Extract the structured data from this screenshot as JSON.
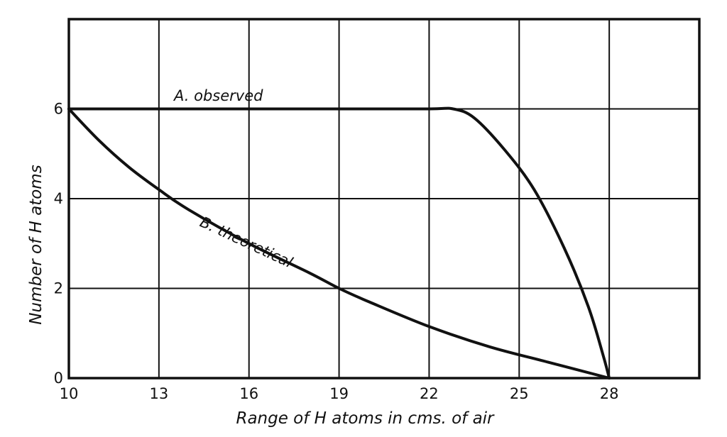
{
  "chart_data": {
    "type": "line",
    "xlabel": "Range of H atoms in cms. of air",
    "ylabel": "Number of H atoms",
    "xlim": [
      10,
      31
    ],
    "ylim": [
      0,
      8
    ],
    "x_ticks": [
      "10",
      "13",
      "16",
      "19",
      "22",
      "25",
      "28"
    ],
    "y_ticks": [
      "0",
      "2",
      "4",
      "6"
    ],
    "grid": true,
    "series": [
      {
        "name": "A. observed",
        "x": [
          10,
          13,
          16,
          19,
          22,
          22.8,
          23.5,
          24.5,
          25.5,
          26.5,
          27.3,
          27.8,
          28
        ],
        "y": [
          6,
          6,
          6,
          6,
          6,
          6,
          5.8,
          5.1,
          4.2,
          2.9,
          1.6,
          0.5,
          0
        ]
      },
      {
        "name": "B. theoretical",
        "x": [
          10,
          11,
          12,
          13,
          14,
          16,
          18,
          19,
          20,
          22,
          24,
          26,
          28
        ],
        "y": [
          6,
          5.3,
          4.7,
          4.2,
          3.75,
          3.0,
          2.35,
          2.0,
          1.7,
          1.15,
          0.7,
          0.35,
          0
        ]
      }
    ]
  }
}
